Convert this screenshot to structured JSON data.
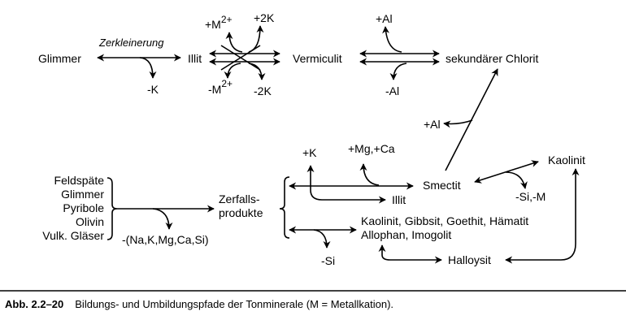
{
  "diagram": {
    "top": {
      "glimmer": "Glimmer",
      "zerkleinerung": "Zerkleinerung",
      "minus_k": "-K",
      "illit": "Illit",
      "plus_m": "+M",
      "plus_m_sup": "2+",
      "plus_2k": "+2K",
      "minus_m": "-M",
      "minus_m_sup": "2+",
      "minus_2k": "-2K",
      "vermiculit": "Vermiculit",
      "plus_al": "+Al",
      "minus_al": "-Al",
      "sek_chlorit": "sekundärer Chlorit"
    },
    "middle": {
      "plus_al_2": "+Al"
    },
    "bottom": {
      "sources": [
        "Feldspäte",
        "Glimmer",
        "Pyribole",
        "Olivin",
        "Vulk. Gläser"
      ],
      "release": "-(Na,K,Mg,Ca,Si)",
      "zerfalls_1": "Zerfalls-",
      "zerfalls_2": "produkte",
      "plus_k": "+K",
      "plus_mg_ca": "+Mg,+Ca",
      "smectit": "Smectit",
      "illit": "Illit",
      "kaolinit_group_1": "Kaolinit, Gibbsit, Goethit, Hämatit",
      "kaolinit_group_2": "Allophan, Imogolit",
      "minus_si": "-Si",
      "halloysit": "Halloysit",
      "kaolinit": "Kaolinit",
      "minus_si_m": "-Si,-M"
    }
  },
  "caption": {
    "number": "Abb. 2.2–20",
    "text": "Bildungs- und Umbildungspfade der Tonminerale (M = Metallkation)."
  }
}
